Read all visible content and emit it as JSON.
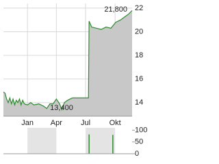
{
  "chart_data": [
    {
      "type": "area-line",
      "color": "#2e8b2e",
      "fill": "#c8c8c8",
      "xlim": [
        -75,
        326
      ],
      "ylim": [
        12.85,
        22.4
      ],
      "xticks": [
        {
          "value": 0,
          "label": "Jan"
        },
        {
          "value": 90,
          "label": "Apr"
        },
        {
          "value": 181,
          "label": "Jul"
        },
        {
          "value": 273,
          "label": "Okt"
        }
      ],
      "yticks": [
        14,
        16,
        18,
        20,
        22
      ],
      "grid": true,
      "annotations": [
        "21,800",
        "13,400"
      ],
      "x": [
        -75,
        -70,
        -65,
        -60,
        -55,
        -50,
        -45,
        -40,
        -35,
        -30,
        -25,
        -20,
        -15,
        -10,
        0,
        10,
        20,
        35,
        50,
        60,
        70,
        80,
        90,
        100,
        107,
        115,
        125,
        140,
        160,
        190,
        192,
        200,
        215,
        230,
        245,
        260,
        275,
        290,
        305,
        315,
        326
      ],
      "values": [
        14.9,
        14.8,
        14.3,
        14.0,
        14.4,
        13.9,
        14.3,
        13.8,
        14.2,
        14.0,
        14.3,
        13.8,
        14.2,
        13.9,
        13.8,
        14.0,
        13.8,
        13.9,
        13.7,
        13.5,
        13.9,
        13.9,
        14.3,
        13.9,
        13.4,
        14.0,
        14.2,
        14.4,
        14.4,
        14.4,
        20.9,
        20.4,
        20.3,
        20.2,
        20.4,
        20.3,
        20.8,
        21.0,
        21.3,
        21.5,
        21.8
      ]
    },
    {
      "type": "volume",
      "color": "#2e8b2e",
      "xlim": [
        -75,
        326
      ],
      "ylim": [
        0,
        110
      ],
      "yticks": [
        0,
        50,
        100
      ],
      "x": [
        192,
        266
      ],
      "values": [
        82,
        80
      ]
    }
  ]
}
